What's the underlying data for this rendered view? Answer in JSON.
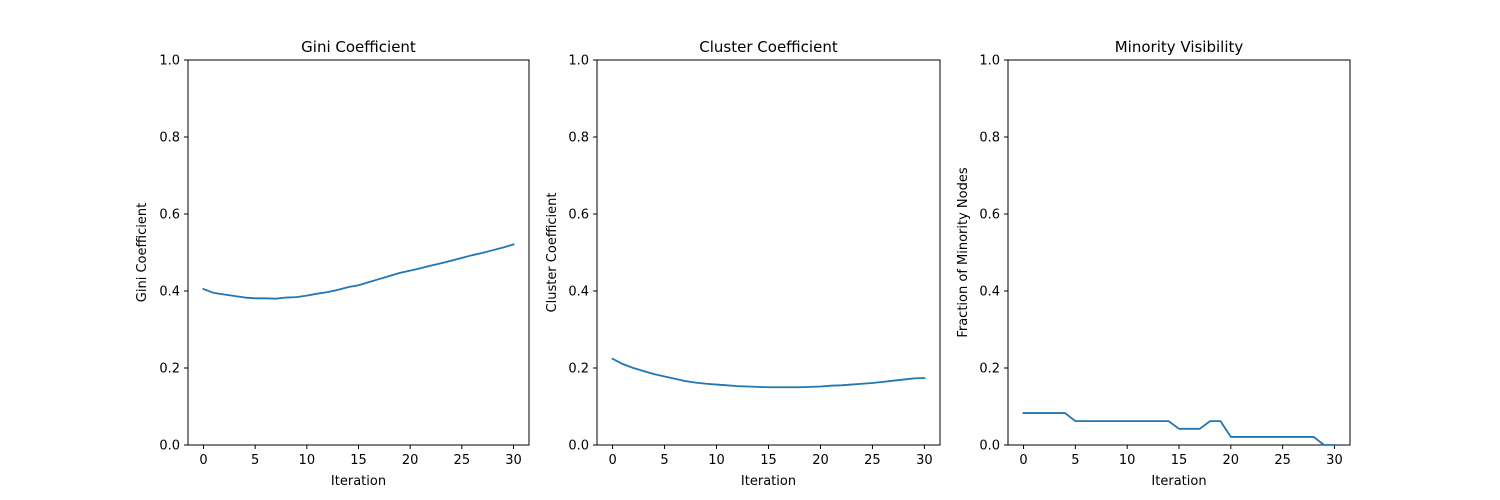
{
  "chart_data": [
    {
      "type": "line",
      "title": "Gini Coefficient",
      "xlabel": "Iteration",
      "ylabel": "Gini Coefficient",
      "xlim": [
        -1.5,
        31.5
      ],
      "ylim": [
        0,
        1
      ],
      "xticks": [
        0,
        5,
        10,
        15,
        20,
        25,
        30
      ],
      "yticks": [
        0.0,
        0.2,
        0.4,
        0.6,
        0.8,
        1.0
      ],
      "x": [
        0,
        1,
        2,
        3,
        4,
        5,
        6,
        7,
        8,
        9,
        10,
        11,
        12,
        13,
        14,
        15,
        16,
        17,
        18,
        19,
        20,
        21,
        22,
        23,
        24,
        25,
        26,
        27,
        28,
        29,
        30
      ],
      "series": [
        {
          "color": "#1f77b4",
          "values": [
            0.405,
            0.395,
            0.391,
            0.387,
            0.383,
            0.381,
            0.381,
            0.38,
            0.383,
            0.384,
            0.388,
            0.393,
            0.397,
            0.403,
            0.41,
            0.415,
            0.423,
            0.431,
            0.439,
            0.447,
            0.453,
            0.459,
            0.466,
            0.472,
            0.479,
            0.486,
            0.493,
            0.499,
            0.506,
            0.513,
            0.521
          ]
        }
      ],
      "grid": false
    },
    {
      "type": "line",
      "title": "Cluster Coefficient",
      "xlabel": "Iteration",
      "ylabel": "Cluster Coefficient",
      "xlim": [
        -1.5,
        31.5
      ],
      "ylim": [
        0,
        1
      ],
      "xticks": [
        0,
        5,
        10,
        15,
        20,
        25,
        30
      ],
      "yticks": [
        0.0,
        0.2,
        0.4,
        0.6,
        0.8,
        1.0
      ],
      "x": [
        0,
        1,
        2,
        3,
        4,
        5,
        6,
        7,
        8,
        9,
        10,
        11,
        12,
        13,
        14,
        15,
        16,
        17,
        18,
        19,
        20,
        21,
        22,
        23,
        24,
        25,
        26,
        27,
        28,
        29,
        30
      ],
      "series": [
        {
          "color": "#1f77b4",
          "values": [
            0.224,
            0.21,
            0.2,
            0.192,
            0.184,
            0.178,
            0.172,
            0.166,
            0.162,
            0.159,
            0.157,
            0.155,
            0.153,
            0.152,
            0.151,
            0.15,
            0.15,
            0.15,
            0.15,
            0.151,
            0.152,
            0.154,
            0.155,
            0.157,
            0.159,
            0.161,
            0.164,
            0.167,
            0.17,
            0.173,
            0.174
          ]
        }
      ],
      "grid": false
    },
    {
      "type": "line",
      "title": "Minority Visibility",
      "xlabel": "Iteration",
      "ylabel": "Fraction of Minority Nodes",
      "xlim": [
        -1.5,
        31.5
      ],
      "ylim": [
        0,
        1
      ],
      "xticks": [
        0,
        5,
        10,
        15,
        20,
        25,
        30
      ],
      "yticks": [
        0.0,
        0.2,
        0.4,
        0.6,
        0.8,
        1.0
      ],
      "x": [
        0,
        1,
        2,
        3,
        4,
        5,
        6,
        7,
        8,
        9,
        10,
        11,
        12,
        13,
        14,
        15,
        16,
        17,
        18,
        19,
        20,
        21,
        22,
        23,
        24,
        25,
        26,
        27,
        28,
        29,
        30
      ],
      "series": [
        {
          "color": "#1f77b4",
          "values": [
            0.083,
            0.083,
            0.083,
            0.083,
            0.083,
            0.062,
            0.062,
            0.062,
            0.062,
            0.062,
            0.062,
            0.062,
            0.062,
            0.062,
            0.062,
            0.042,
            0.042,
            0.042,
            0.062,
            0.062,
            0.021,
            0.021,
            0.021,
            0.021,
            0.021,
            0.021,
            0.021,
            0.021,
            0.021,
            0.0,
            0.0
          ]
        }
      ],
      "grid": false
    }
  ]
}
